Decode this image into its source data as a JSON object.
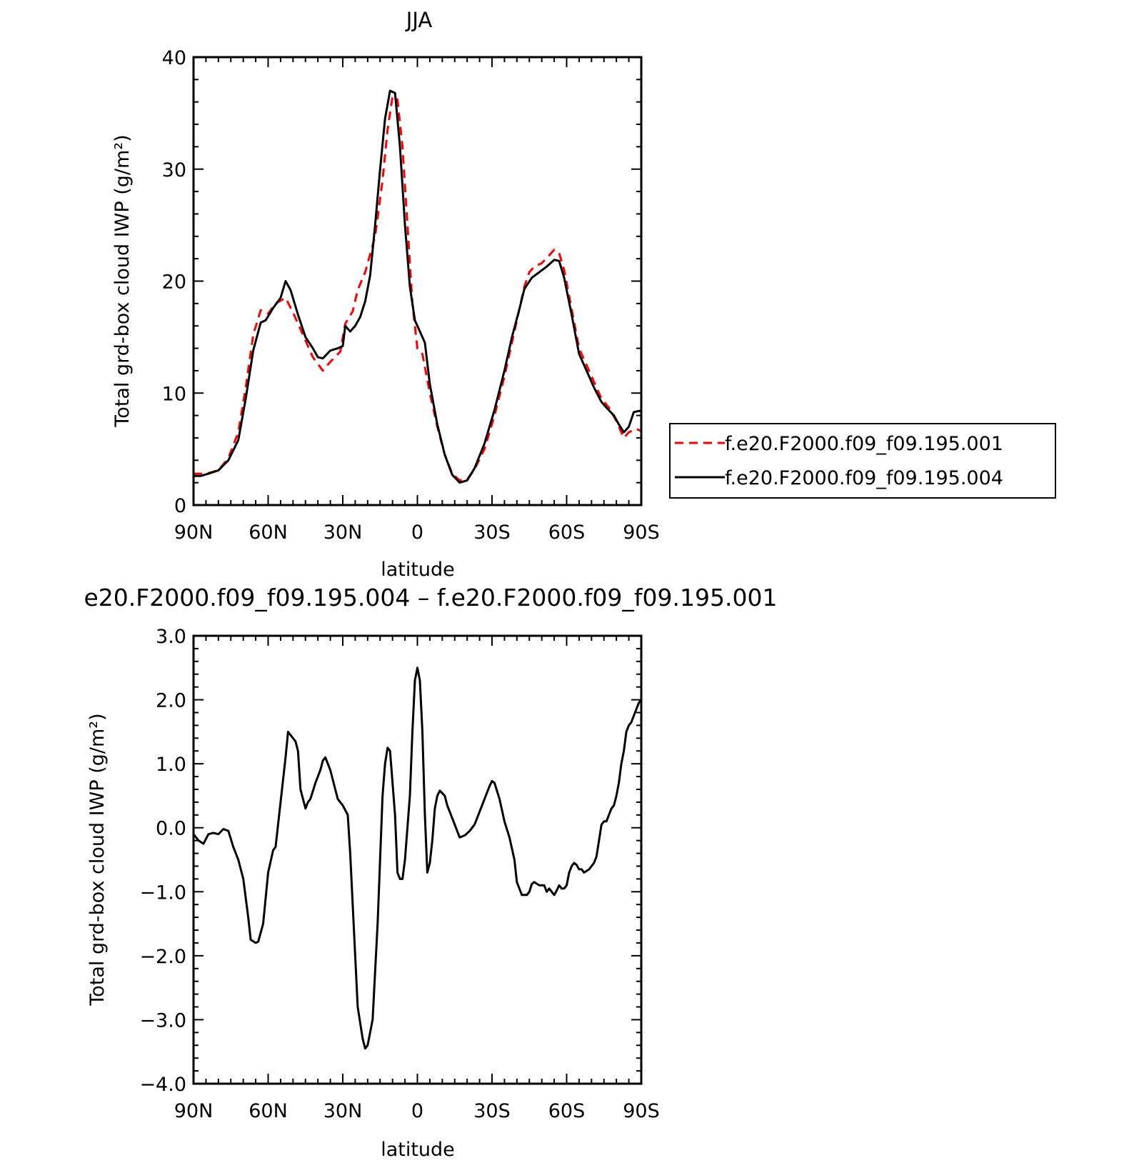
{
  "chart_data": [
    {
      "type": "line",
      "title": "JJA",
      "xlabel": "latitude",
      "ylabel": "Total grd-box cloud IWP (g/m²)",
      "x_ticks": [
        "90N",
        "60N",
        "30N",
        "0",
        "30S",
        "60S",
        "90S"
      ],
      "x_tick_values": [
        90,
        60,
        30,
        0,
        -30,
        -60,
        -90
      ],
      "xlim": [
        90,
        -90
      ],
      "y_ticks": [
        "0",
        "10",
        "20",
        "30",
        "40"
      ],
      "y_tick_values": [
        0,
        10,
        20,
        30,
        40
      ],
      "ylim": [
        0,
        40
      ],
      "legend_position": "right",
      "series": [
        {
          "name": "f.e20.F2000.f09_f09.195.001",
          "color": "#ff0000",
          "dash": "dashed",
          "points": [
            [
              90,
              2.8
            ],
            [
              85,
              2.8
            ],
            [
              80,
              3.1
            ],
            [
              76,
              4.2
            ],
            [
              72,
              6.5
            ],
            [
              69,
              10.5
            ],
            [
              66,
              15.2
            ],
            [
              63,
              17.4
            ],
            [
              60,
              17.1
            ],
            [
              57,
              18.0
            ],
            [
              53,
              18.5
            ],
            [
              50,
              17.2
            ],
            [
              46,
              15.2
            ],
            [
              42,
              13.2
            ],
            [
              38,
              12.0
            ],
            [
              35,
              12.8
            ],
            [
              31,
              13.7
            ],
            [
              29,
              16.2
            ],
            [
              26,
              17.3
            ],
            [
              24,
              19.2
            ],
            [
              21,
              20.8
            ],
            [
              17,
              24.0
            ],
            [
              14,
              29.0
            ],
            [
              12,
              33.5
            ],
            [
              10,
              36.5
            ],
            [
              8,
              36.2
            ],
            [
              6,
              32.0
            ],
            [
              4,
              25.0
            ],
            [
              2,
              18.0
            ],
            [
              0,
              14.0
            ],
            [
              -2,
              13.5
            ],
            [
              -5,
              10.0
            ],
            [
              -8,
              7.0
            ],
            [
              -11,
              4.5
            ],
            [
              -14,
              2.8
            ],
            [
              -17,
              2.2
            ],
            [
              -20,
              2.3
            ],
            [
              -23,
              3.2
            ],
            [
              -27,
              5.0
            ],
            [
              -31,
              8.0
            ],
            [
              -35,
              11.5
            ],
            [
              -38,
              14.5
            ],
            [
              -41,
              17.5
            ],
            [
              -43,
              19.5
            ],
            [
              -45,
              20.8
            ],
            [
              -47,
              21.3
            ],
            [
              -50,
              21.6
            ],
            [
              -53,
              22.3
            ],
            [
              -55,
              22.8
            ],
            [
              -57,
              22.5
            ],
            [
              -59,
              21.0
            ],
            [
              -62,
              17.5
            ],
            [
              -65,
              14.0
            ],
            [
              -68,
              12.5
            ],
            [
              -71,
              11.0
            ],
            [
              -74,
              9.5
            ],
            [
              -77,
              8.7
            ],
            [
              -80,
              7.5
            ],
            [
              -83,
              6.0
            ],
            [
              -85,
              6.5
            ],
            [
              -88,
              6.8
            ],
            [
              -90,
              6.6
            ]
          ]
        },
        {
          "name": "f.e20.F2000.f09_f09.195.004",
          "color": "#000000",
          "dash": "solid",
          "points": [
            [
              90,
              2.6
            ],
            [
              87,
              2.6
            ],
            [
              84,
              2.8
            ],
            [
              80,
              3.1
            ],
            [
              76,
              4.0
            ],
            [
              72,
              5.8
            ],
            [
              69,
              9.5
            ],
            [
              66,
              13.8
            ],
            [
              63,
              16.3
            ],
            [
              61,
              16.5
            ],
            [
              58,
              17.6
            ],
            [
              55,
              18.5
            ],
            [
              53,
              20.0
            ],
            [
              51,
              19.2
            ],
            [
              48,
              17.0
            ],
            [
              45,
              15.0
            ],
            [
              42,
              14.0
            ],
            [
              40,
              13.2
            ],
            [
              38,
              13.1
            ],
            [
              35,
              13.8
            ],
            [
              32,
              14.0
            ],
            [
              30,
              14.2
            ],
            [
              29,
              16.0
            ],
            [
              27,
              15.5
            ],
            [
              25,
              16.0
            ],
            [
              23,
              16.8
            ],
            [
              21,
              18.2
            ],
            [
              19,
              20.5
            ],
            [
              17,
              25.0
            ],
            [
              15,
              30.0
            ],
            [
              13,
              34.5
            ],
            [
              11,
              37.0
            ],
            [
              9,
              36.8
            ],
            [
              7,
              32.0
            ],
            [
              5,
              25.0
            ],
            [
              3,
              19.5
            ],
            [
              1,
              16.5
            ],
            [
              -1,
              15.5
            ],
            [
              -3,
              14.5
            ],
            [
              -5,
              10.8
            ],
            [
              -8,
              7.2
            ],
            [
              -11,
              4.5
            ],
            [
              -14,
              2.7
            ],
            [
              -17,
              2.0
            ],
            [
              -20,
              2.2
            ],
            [
              -23,
              3.3
            ],
            [
              -27,
              5.5
            ],
            [
              -31,
              8.5
            ],
            [
              -35,
              12.0
            ],
            [
              -38,
              15.0
            ],
            [
              -41,
              17.5
            ],
            [
              -43,
              19.3
            ],
            [
              -46,
              20.3
            ],
            [
              -49,
              20.8
            ],
            [
              -52,
              21.3
            ],
            [
              -55,
              21.9
            ],
            [
              -57,
              21.8
            ],
            [
              -59,
              20.3
            ],
            [
              -62,
              17.0
            ],
            [
              -65,
              13.5
            ],
            [
              -68,
              12.0
            ],
            [
              -71,
              10.5
            ],
            [
              -74,
              9.2
            ],
            [
              -76,
              8.7
            ],
            [
              -79,
              8.0
            ],
            [
              -81,
              7.2
            ],
            [
              -83,
              6.5
            ],
            [
              -85,
              7.0
            ],
            [
              -87,
              8.3
            ],
            [
              -89,
              8.4
            ],
            [
              -90,
              8.4
            ]
          ]
        }
      ]
    },
    {
      "type": "line",
      "title": "e20.F2000.f09_f09.195.004 – f.e20.F2000.f09_f09.195.001",
      "xlabel": "latitude",
      "ylabel": "Total grd-box cloud IWP (g/m²)",
      "x_ticks": [
        "90N",
        "60N",
        "30N",
        "0",
        "30S",
        "60S",
        "90S"
      ],
      "x_tick_values": [
        90,
        60,
        30,
        0,
        -30,
        -60,
        -90
      ],
      "xlim": [
        90,
        -90
      ],
      "y_ticks": [
        "3.0",
        "2.0",
        "1.0",
        "0.0",
        "−1.0",
        "−2.0",
        "−3.0",
        "−4.0"
      ],
      "y_tick_values": [
        3,
        2,
        1,
        0,
        -1,
        -2,
        -3,
        -4
      ],
      "ylim": [
        -4,
        3
      ],
      "series": [
        {
          "color": "#000000",
          "points": [
            [
              90,
              -0.1
            ],
            [
              88,
              -0.2
            ],
            [
              86,
              -0.25
            ],
            [
              84,
              -0.1
            ],
            [
              82,
              -0.08
            ],
            [
              80,
              -0.1
            ],
            [
              78,
              -0.02
            ],
            [
              76,
              -0.05
            ],
            [
              74,
              -0.3
            ],
            [
              72,
              -0.5
            ],
            [
              70,
              -0.8
            ],
            [
              68,
              -1.4
            ],
            [
              67,
              -1.75
            ],
            [
              65,
              -1.8
            ],
            [
              64,
              -1.78
            ],
            [
              62,
              -1.5
            ],
            [
              60,
              -0.7
            ],
            [
              58,
              -0.35
            ],
            [
              57,
              -0.3
            ],
            [
              55,
              0.4
            ],
            [
              53,
              1.1
            ],
            [
              52,
              1.5
            ],
            [
              50,
              1.4
            ],
            [
              49,
              1.35
            ],
            [
              48,
              1.2
            ],
            [
              47,
              0.6
            ],
            [
              45,
              0.3
            ],
            [
              44,
              0.4
            ],
            [
              43,
              0.45
            ],
            [
              41,
              0.7
            ],
            [
              39,
              0.9
            ],
            [
              38,
              1.05
            ],
            [
              37,
              1.1
            ],
            [
              35,
              0.9
            ],
            [
              33,
              0.6
            ],
            [
              32,
              0.45
            ],
            [
              30,
              0.35
            ],
            [
              28,
              0.2
            ],
            [
              27,
              -0.4
            ],
            [
              25,
              -2.0
            ],
            [
              24,
              -2.8
            ],
            [
              22,
              -3.3
            ],
            [
              21,
              -3.45
            ],
            [
              20,
              -3.4
            ],
            [
              18,
              -3.0
            ],
            [
              16,
              -1.5
            ],
            [
              14,
              0.5
            ],
            [
              13,
              1.0
            ],
            [
              12,
              1.25
            ],
            [
              11,
              1.2
            ],
            [
              10,
              0.7
            ],
            [
              9,
              0.2
            ],
            [
              8,
              -0.7
            ],
            [
              7,
              -0.8
            ],
            [
              6,
              -0.8
            ],
            [
              5,
              -0.5
            ],
            [
              3,
              0.5
            ],
            [
              2,
              1.5
            ],
            [
              1,
              2.3
            ],
            [
              0,
              2.5
            ],
            [
              -1,
              2.3
            ],
            [
              -2,
              1.5
            ],
            [
              -3,
              0.2
            ],
            [
              -4,
              -0.7
            ],
            [
              -5,
              -0.55
            ],
            [
              -6,
              -0.2
            ],
            [
              -7,
              0.3
            ],
            [
              -8,
              0.5
            ],
            [
              -9,
              0.58
            ],
            [
              -11,
              0.5
            ],
            [
              -12,
              0.35
            ],
            [
              -14,
              0.15
            ],
            [
              -16,
              -0.05
            ],
            [
              -17,
              -0.15
            ],
            [
              -19,
              -0.12
            ],
            [
              -21,
              -0.05
            ],
            [
              -23,
              0.05
            ],
            [
              -25,
              0.25
            ],
            [
              -27,
              0.45
            ],
            [
              -29,
              0.65
            ],
            [
              -30,
              0.73
            ],
            [
              -31,
              0.7
            ],
            [
              -33,
              0.45
            ],
            [
              -35,
              0.1
            ],
            [
              -37,
              -0.15
            ],
            [
              -39,
              -0.5
            ],
            [
              -40,
              -0.85
            ],
            [
              -42,
              -1.05
            ],
            [
              -44,
              -1.05
            ],
            [
              -45,
              -1.0
            ],
            [
              -46,
              -0.88
            ],
            [
              -47,
              -0.85
            ],
            [
              -49,
              -0.9
            ],
            [
              -51,
              -0.9
            ],
            [
              -52,
              -1.0
            ],
            [
              -53,
              -0.95
            ],
            [
              -54,
              -1.0
            ],
            [
              -55,
              -1.05
            ],
            [
              -56,
              -0.98
            ],
            [
              -57,
              -0.9
            ],
            [
              -58,
              -0.95
            ],
            [
              -59,
              -0.95
            ],
            [
              -60,
              -0.9
            ],
            [
              -61,
              -0.7
            ],
            [
              -62,
              -0.6
            ],
            [
              -63,
              -0.55
            ],
            [
              -64,
              -0.58
            ],
            [
              -65,
              -0.65
            ],
            [
              -66,
              -0.65
            ],
            [
              -67,
              -0.7
            ],
            [
              -69,
              -0.65
            ],
            [
              -71,
              -0.55
            ],
            [
              -72,
              -0.45
            ],
            [
              -73,
              -0.2
            ],
            [
              -74,
              0.05
            ],
            [
              -75,
              0.1
            ],
            [
              -76,
              0.1
            ],
            [
              -77,
              0.2
            ],
            [
              -78,
              0.3
            ],
            [
              -79,
              0.35
            ],
            [
              -80,
              0.5
            ],
            [
              -81,
              0.7
            ],
            [
              -82,
              1.0
            ],
            [
              -83,
              1.2
            ],
            [
              -84,
              1.5
            ],
            [
              -85,
              1.6
            ],
            [
              -86,
              1.65
            ],
            [
              -87,
              1.75
            ],
            [
              -88,
              1.85
            ],
            [
              -89,
              1.95
            ],
            [
              -90,
              2.0
            ]
          ]
        }
      ]
    }
  ]
}
